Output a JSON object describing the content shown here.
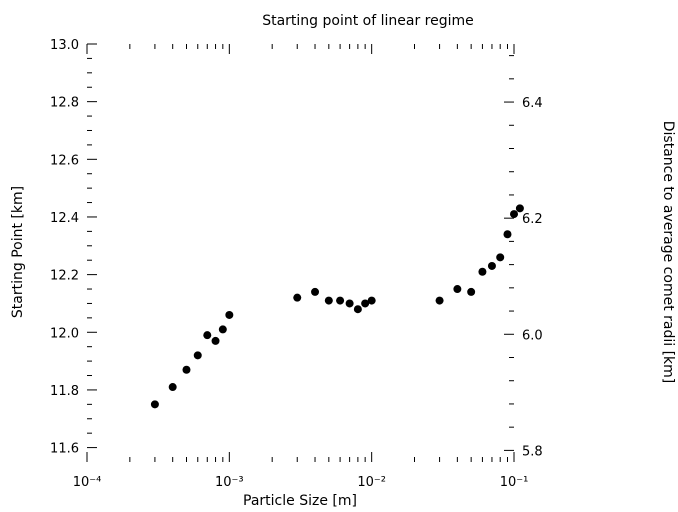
{
  "chart_data": {
    "type": "scatter",
    "title": "Starting point of linear regime",
    "xlabel": "Particle Size [m]",
    "ylabel": "Starting Point [km]",
    "y2label": "Distance to average comet radii [km]",
    "xscale": "log",
    "xlim": [
      0.0001,
      0.1
    ],
    "ylim": [
      11.55,
      13.0
    ],
    "y2lim": [
      5.78,
      6.5
    ],
    "x_tick_labels": [
      {
        "value": 0.0001,
        "label": "10⁻⁴"
      },
      {
        "value": 0.001,
        "label": "10⁻³"
      },
      {
        "value": 0.01,
        "label": "10⁻²"
      },
      {
        "value": 0.1,
        "label": "10⁻¹"
      }
    ],
    "y_ticks": [
      {
        "value": 11.6,
        "label": "11.6"
      },
      {
        "value": 11.8,
        "label": "11.8"
      },
      {
        "value": 12.0,
        "label": "12.0"
      },
      {
        "value": 12.2,
        "label": "12.2"
      },
      {
        "value": 12.4,
        "label": "12.4"
      },
      {
        "value": 12.6,
        "label": "12.6"
      },
      {
        "value": 12.8,
        "label": "12.8"
      },
      {
        "value": 13.0,
        "label": "13.0"
      }
    ],
    "y2_ticks": [
      {
        "value": 5.8,
        "label": "5.8"
      },
      {
        "value": 6.0,
        "label": "6.0"
      },
      {
        "value": 6.2,
        "label": "6.2"
      },
      {
        "value": 6.4,
        "label": "6.4"
      }
    ],
    "grid": false,
    "x": [
      0.0003,
      0.0004,
      0.0005,
      0.0006,
      0.0007,
      0.0008,
      0.0009,
      0.001,
      0.003,
      0.004,
      0.005,
      0.006,
      0.007,
      0.008,
      0.009,
      0.01,
      0.03,
      0.04,
      0.05,
      0.06,
      0.07,
      0.08,
      0.09,
      0.1,
      0.11
    ],
    "y": [
      11.75,
      11.81,
      11.87,
      11.92,
      11.99,
      11.97,
      12.01,
      12.06,
      12.12,
      12.14,
      12.11,
      12.11,
      12.1,
      12.08,
      12.1,
      12.11,
      12.11,
      12.15,
      12.14,
      12.21,
      12.23,
      12.26,
      12.34,
      12.41,
      12.43
    ]
  }
}
